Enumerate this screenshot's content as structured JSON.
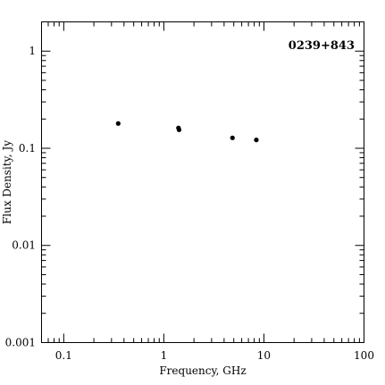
{
  "chart_data": {
    "type": "scatter",
    "title": "0239+843",
    "xlabel": "Frequency, GHz",
    "ylabel": "Flux Density, Jy",
    "xscale": "log",
    "yscale": "log",
    "xlim": [
      0.06,
      100
    ],
    "ylim": [
      0.001,
      2
    ],
    "xticks": [
      0.1,
      1,
      10,
      100
    ],
    "xtick_labels": [
      "0.1",
      "1",
      "10",
      "100"
    ],
    "yticks": [
      0.001,
      0.01,
      0.1,
      1
    ],
    "ytick_labels": [
      "0.001",
      "0.01",
      "0.1",
      "1"
    ],
    "grid": false,
    "series": [
      {
        "points": [
          {
            "x": 0.35,
            "y": 0.18
          },
          {
            "x": 1.4,
            "y": 0.162
          },
          {
            "x": 1.42,
            "y": 0.155
          },
          {
            "x": 4.85,
            "y": 0.128
          },
          {
            "x": 8.4,
            "y": 0.122
          }
        ]
      }
    ]
  }
}
